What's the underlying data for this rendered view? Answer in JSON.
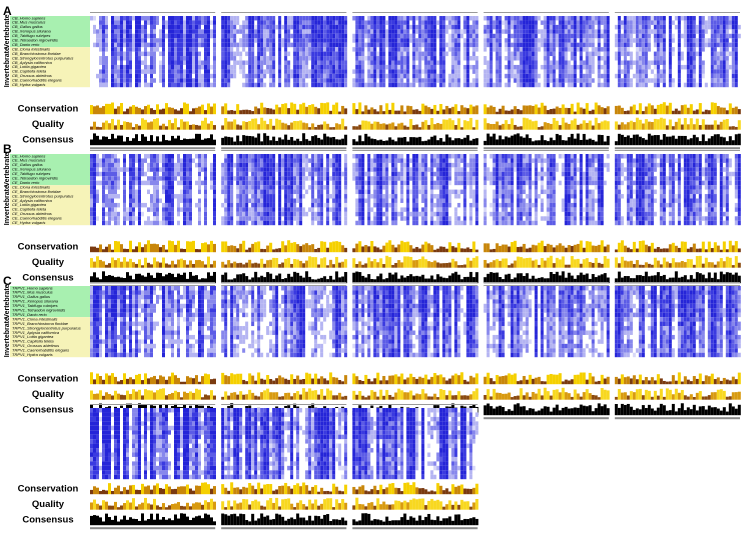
{
  "panels": [
    {
      "label": "A",
      "groups": [
        "Vertebrate",
        "Invertebrate"
      ],
      "tracks": [
        "Conservation",
        "Quality",
        "Consensus"
      ],
      "sequences": [
        "CB_Homo sapiens",
        "CB_Mus musculus",
        "CB_Gallus gallus",
        "CB_Xenopus silurana",
        "CB_Takifugu rubripes",
        "CB_Tetraodon nigroviridis",
        "CB_Danio rerio",
        "CB_Ciona intestinalis",
        "CB_Branchiostoma floridae",
        "CB_Strongylocentrotus purpuratus",
        "CB_Aplysia californica",
        "CB_Lottia gigantea",
        "CB_Capitella teleta",
        "CB_Orussus abietinus",
        "CB_Caenorhabditis elegans",
        "CB_Hydra vulgaris"
      ]
    },
    {
      "label": "B",
      "groups": [
        "Vertebrate",
        "Invertebrate"
      ],
      "tracks": [
        "Conservation",
        "Quality",
        "Consensus"
      ],
      "sequences": [
        "CE_Homo sapiens",
        "CE_Mus musculus",
        "CE_Gallus gallus",
        "CE_Xenopus silurana",
        "CE_Takifugu rubripes",
        "CE_Tetraodon nigroviridis",
        "CE_Danio rerio",
        "CE_Ciona intestinalis",
        "CE_Branchiostoma floridae",
        "CE_Strongylocentrotus purpuratus",
        "CE_Aplysia californica",
        "CE_Lottia gigantea",
        "CE_Capitella teleta",
        "CE_Orussus abietinus",
        "CE_Caenorhabditis elegans",
        "CE_Hydra vulgaris"
      ]
    },
    {
      "label": "C",
      "groups": [
        "Vertebrate",
        "Invertebrate"
      ],
      "tracks": [
        "Conservation",
        "Quality",
        "Consensus"
      ],
      "sequences": [
        "TRPV1_Homo sapiens",
        "TRPV1_Mus musculus",
        "TRPV1_Gallus gallus",
        "TRPV1_Xenopus silurana",
        "TRPV1_Takifugu rubripes",
        "TRPV1_Tetraodon nigroviridis",
        "TRPV1_Danio rerio",
        "TRPV1_Ciona intestinalis",
        "TRPV1_Branchiostoma floridae",
        "TRPV1_Strongylocentrotus purpuratus",
        "TRPV1_Aplysia californica",
        "TRPV1_Lottia gigantea",
        "TRPV1_Capitella teleta",
        "TRPV1_Orussus abietinus",
        "TRPV1_Caenorhabditis elegans",
        "TRPV1_Hydra vulgaris"
      ]
    }
  ],
  "continuation": {
    "tracks": [
      "Conservation",
      "Quality",
      "Consensus"
    ]
  }
}
